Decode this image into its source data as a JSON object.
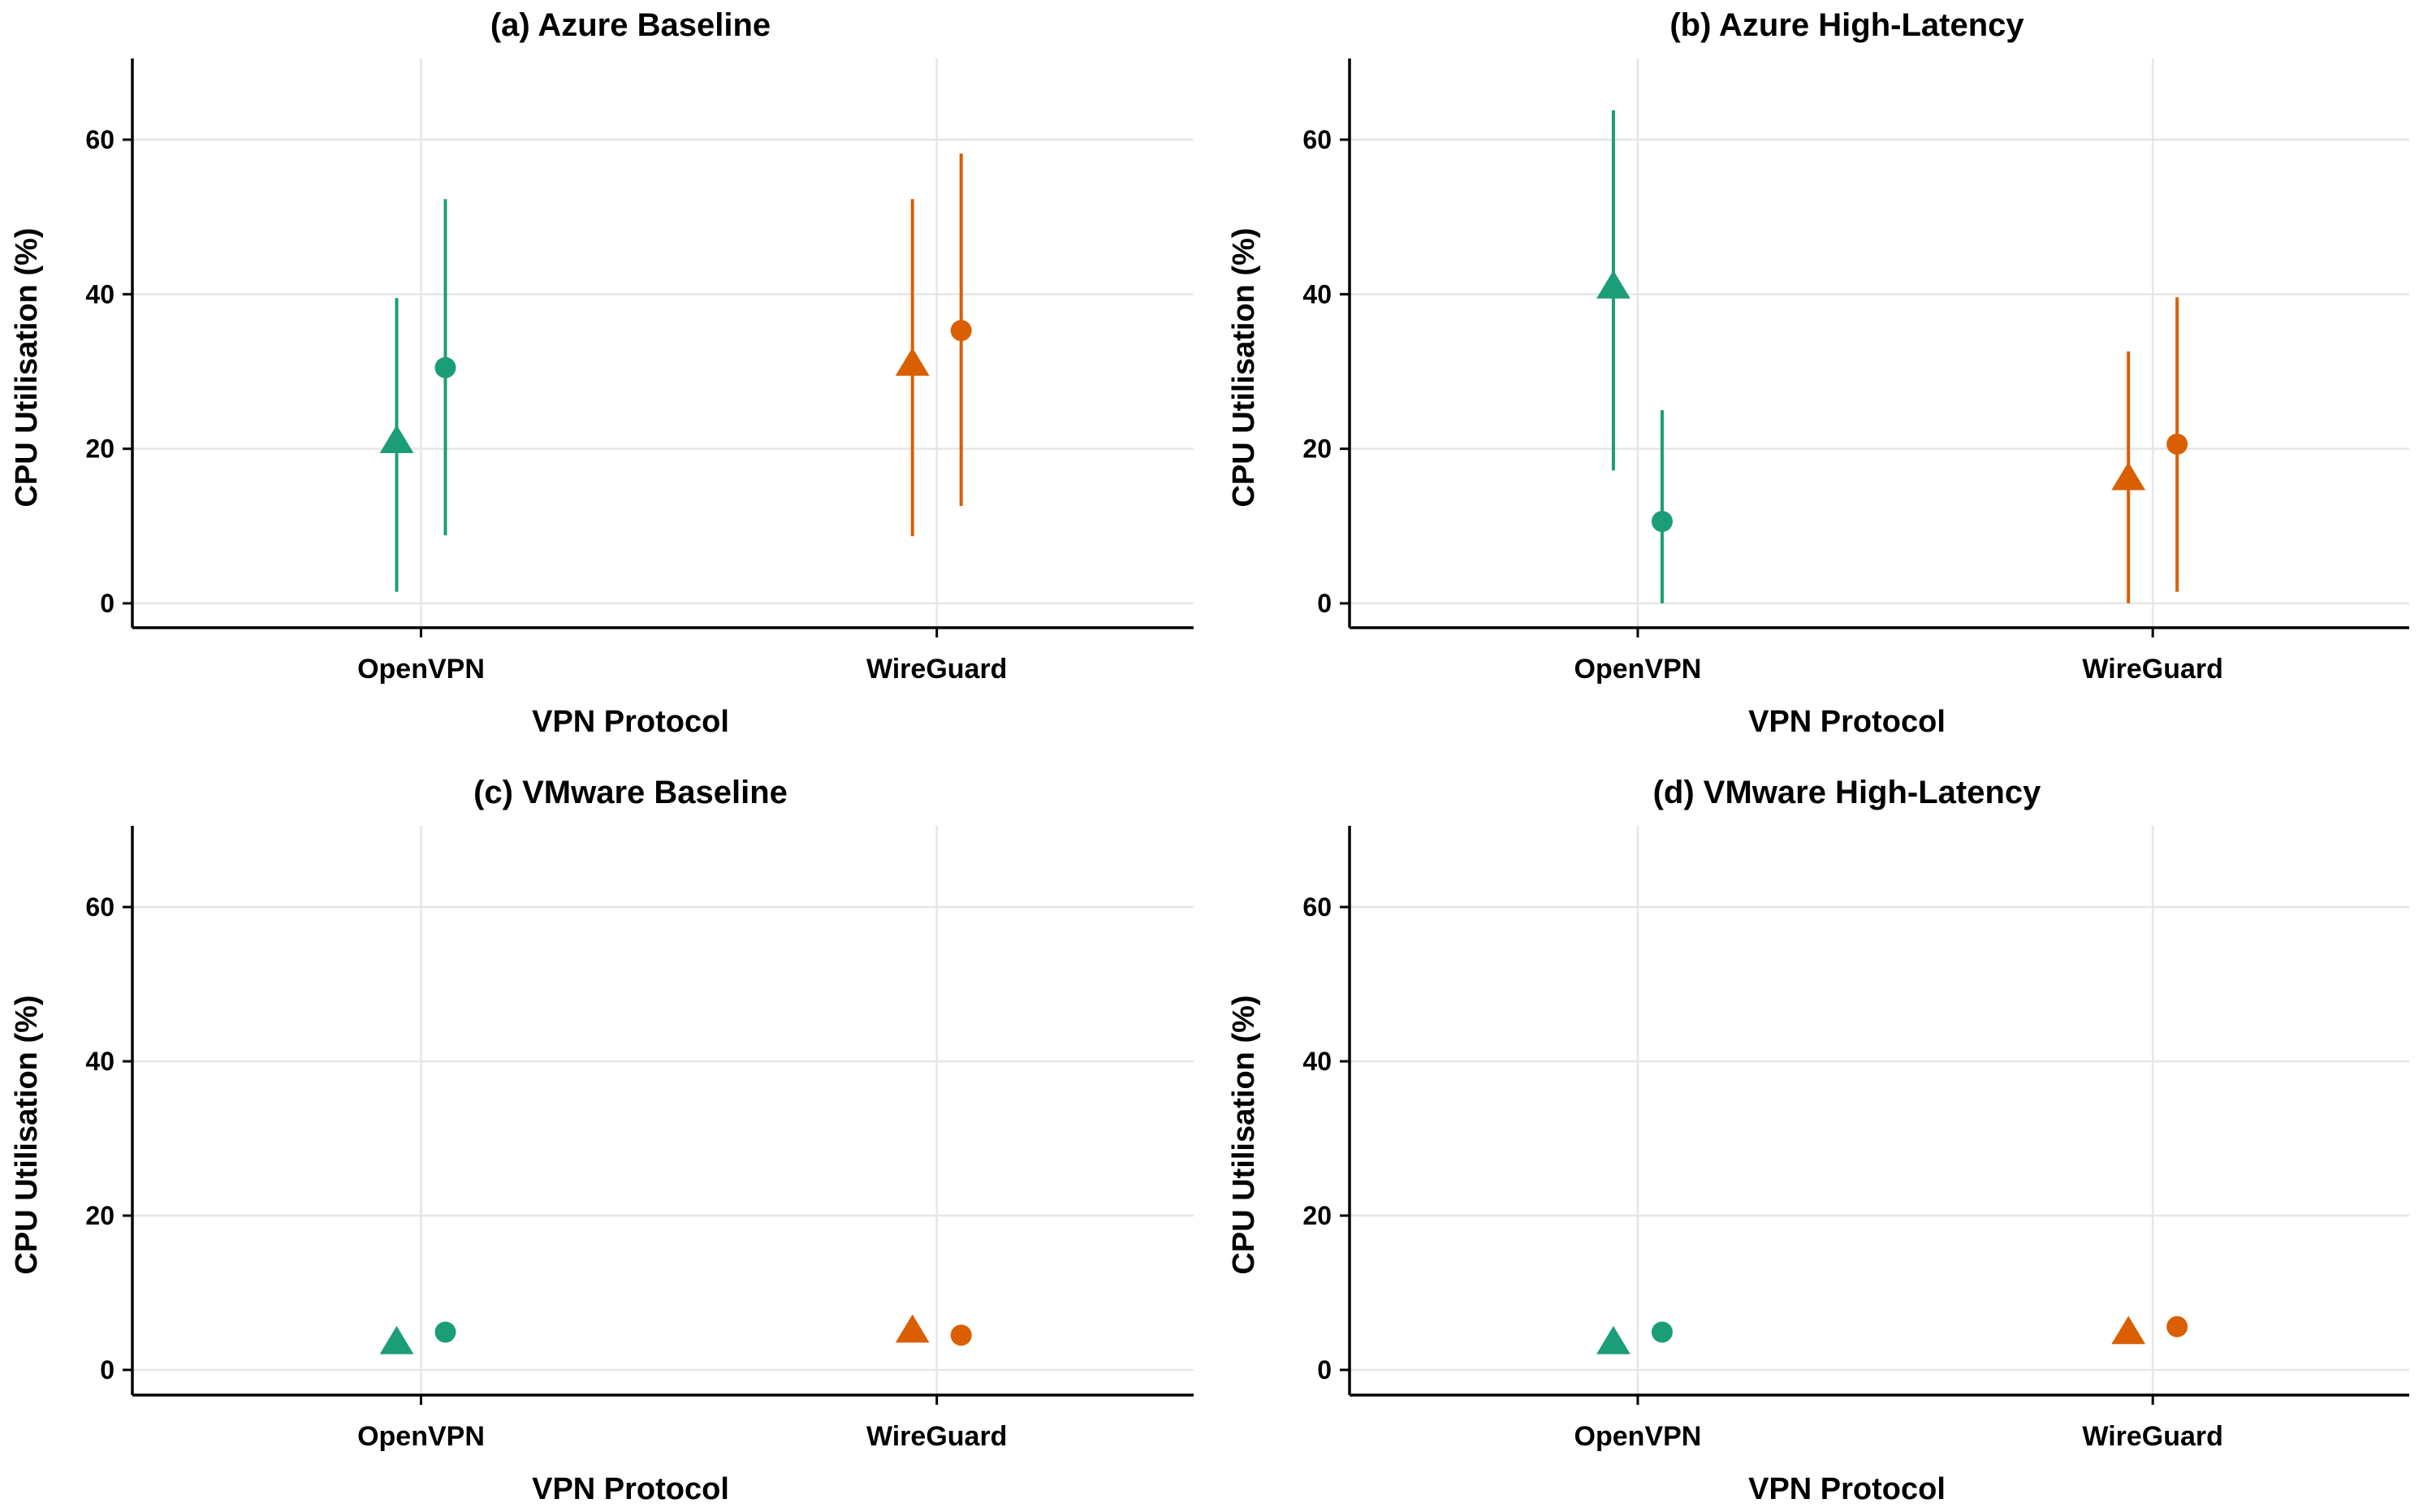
{
  "chart_data": [
    {
      "type": "scatter",
      "title": "(a) Azure Baseline",
      "xlabel": "VPN Protocol",
      "ylabel": "CPU Utilisation (%)",
      "ylim": [
        -3,
        70
      ],
      "yticks": [
        0,
        20,
        40,
        60
      ],
      "categories": [
        "OpenVPN",
        "WireGuard"
      ],
      "points": [
        {
          "category": "OpenVPN",
          "marker": "triangle",
          "color": "#1b9e77",
          "value": 21,
          "low": 1.5,
          "high": 39.5
        },
        {
          "category": "OpenVPN",
          "marker": "circle",
          "color": "#1b9e77",
          "value": 30.5,
          "low": 8.8,
          "high": 52.3
        },
        {
          "category": "WireGuard",
          "marker": "triangle",
          "color": "#d95f02",
          "value": 31,
          "low": 8.7,
          "high": 52.3
        },
        {
          "category": "WireGuard",
          "marker": "circle",
          "color": "#d95f02",
          "value": 35.3,
          "low": 12.6,
          "high": 58.2
        }
      ]
    },
    {
      "type": "scatter",
      "title": "(b) Azure High-Latency",
      "xlabel": "VPN Protocol",
      "ylabel": "CPU Utilisation (%)",
      "ylim": [
        -3,
        70
      ],
      "yticks": [
        0,
        20,
        40,
        60
      ],
      "categories": [
        "OpenVPN",
        "WireGuard"
      ],
      "points": [
        {
          "category": "OpenVPN",
          "marker": "triangle",
          "color": "#1b9e77",
          "value": 41,
          "low": 17.2,
          "high": 63.8
        },
        {
          "category": "OpenVPN",
          "marker": "circle",
          "color": "#1b9e77",
          "value": 10.6,
          "low": 0,
          "high": 25
        },
        {
          "category": "WireGuard",
          "marker": "triangle",
          "color": "#d95f02",
          "value": 16.2,
          "low": 0,
          "high": 32.6
        },
        {
          "category": "WireGuard",
          "marker": "circle",
          "color": "#d95f02",
          "value": 20.6,
          "low": 1.5,
          "high": 39.6
        }
      ]
    },
    {
      "type": "scatter",
      "title": "(c) VMware Baseline",
      "xlabel": "VPN Protocol",
      "ylabel": "CPU Utilisation (%)",
      "ylim": [
        -3,
        70
      ],
      "yticks": [
        0,
        20,
        40,
        60
      ],
      "categories": [
        "OpenVPN",
        "WireGuard"
      ],
      "points": [
        {
          "category": "OpenVPN",
          "marker": "triangle",
          "color": "#1b9e77",
          "value": 3.6
        },
        {
          "category": "OpenVPN",
          "marker": "circle",
          "color": "#1b9e77",
          "value": 4.9
        },
        {
          "category": "WireGuard",
          "marker": "triangle",
          "color": "#d95f02",
          "value": 5.1
        },
        {
          "category": "WireGuard",
          "marker": "circle",
          "color": "#d95f02",
          "value": 4.5
        }
      ]
    },
    {
      "type": "scatter",
      "title": "(d) VMware High-Latency",
      "xlabel": "VPN Protocol",
      "ylabel": "CPU Utilisation (%)",
      "ylim": [
        -3,
        70
      ],
      "yticks": [
        0,
        20,
        40,
        60
      ],
      "categories": [
        "OpenVPN",
        "WireGuard"
      ],
      "points": [
        {
          "category": "OpenVPN",
          "marker": "triangle",
          "color": "#1b9e77",
          "value": 3.6
        },
        {
          "category": "OpenVPN",
          "marker": "circle",
          "color": "#1b9e77",
          "value": 4.9
        },
        {
          "category": "WireGuard",
          "marker": "triangle",
          "color": "#d95f02",
          "value": 4.9
        },
        {
          "category": "WireGuard",
          "marker": "circle",
          "color": "#d95f02",
          "value": 5.6
        }
      ]
    }
  ]
}
